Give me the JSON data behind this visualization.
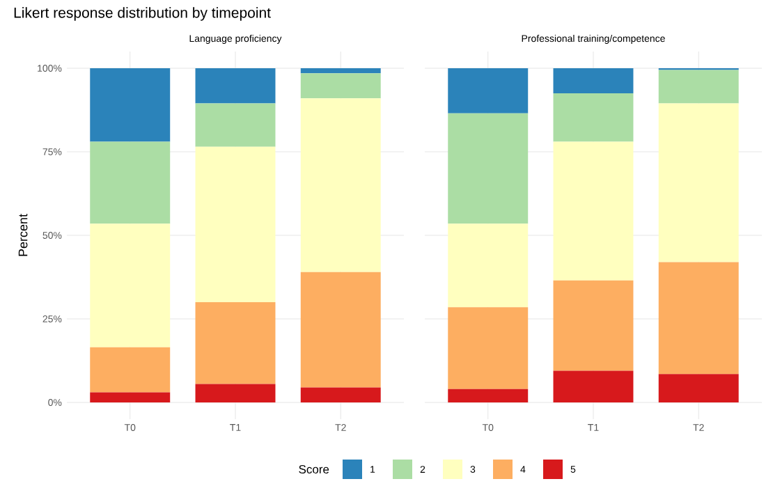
{
  "chart_data": [
    {
      "type": "bar",
      "title": "Likert response distribution by timepoint",
      "subtitle": "Language proficiency",
      "ylabel": "Percent",
      "legend_title": "Score",
      "legend": "bottom",
      "stacked": true,
      "grid": true,
      "categories": [
        "T0",
        "T1",
        "T2"
      ],
      "ylim": [
        -5,
        105
      ],
      "yticks": [
        {
          "value": 0,
          "label": "0%"
        },
        {
          "value": 25,
          "label": "25%"
        },
        {
          "value": 50,
          "label": "50%"
        },
        {
          "value": 75,
          "label": "75%"
        },
        {
          "value": 100,
          "label": "100%"
        }
      ],
      "series": [
        {
          "name": "5",
          "color": "#d7191c",
          "values": [
            3,
            5.5,
            4.5
          ]
        },
        {
          "name": "4",
          "color": "#fdae61",
          "values": [
            13.5,
            24.5,
            34.5
          ]
        },
        {
          "name": "3",
          "color": "#ffffbf",
          "values": [
            37,
            46.5,
            52
          ]
        },
        {
          "name": "2",
          "color": "#abdda4",
          "values": [
            24.5,
            13,
            7.5
          ]
        },
        {
          "name": "1",
          "color": "#2b83ba",
          "values": [
            22,
            10.5,
            1.5
          ]
        }
      ]
    },
    {
      "type": "bar",
      "subtitle": "Professional training/competence",
      "stacked": true,
      "grid": true,
      "tick_labels": "x",
      "categories": [
        "T0",
        "T1",
        "T2"
      ],
      "ylim": [
        -5,
        105
      ],
      "yticks": [
        {
          "value": 0,
          "label": null
        },
        {
          "value": 25,
          "label": null
        },
        {
          "value": 50,
          "label": null
        },
        {
          "value": 75,
          "label": null
        },
        {
          "value": 100,
          "label": null
        }
      ],
      "series": [
        {
          "color": "#d7191c",
          "values": [
            4,
            9.5,
            8.5
          ]
        },
        {
          "color": "#fdae61",
          "values": [
            24.5,
            27,
            33.5
          ]
        },
        {
          "color": "#ffffbf",
          "values": [
            25,
            41.5,
            47.5
          ]
        },
        {
          "color": "#abdda4",
          "values": [
            33,
            14.5,
            10
          ]
        },
        {
          "color": "#2b83ba",
          "values": [
            13.5,
            7.5,
            0.5
          ]
        }
      ]
    }
  ]
}
